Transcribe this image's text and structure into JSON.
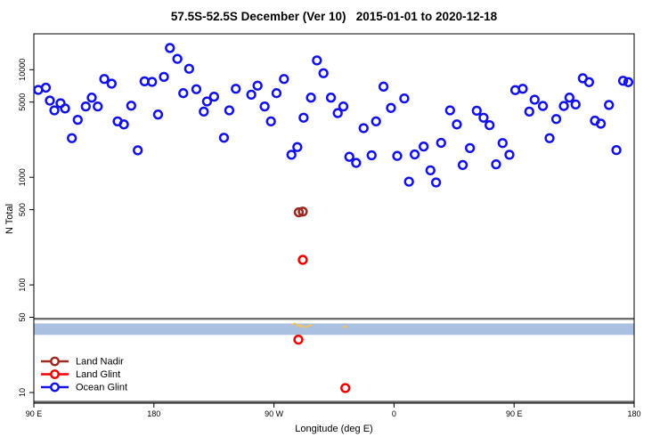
{
  "title": "57.5S-52.5S December (Ver 10)   2015-01-01 to 2020-12-18",
  "chart_data": {
    "type": "scatter",
    "title": "57.5S-52.5S December (Ver 10)   2015-01-01 to 2020-12-18",
    "xlabel": "Longitude (deg E)",
    "ylabel": "N Total",
    "x_axis": {
      "range": [
        90,
        540
      ],
      "ticks": [
        {
          "value": 90,
          "label": "90 E"
        },
        {
          "value": 180,
          "label": "180"
        },
        {
          "value": 270,
          "label": "90 W"
        },
        {
          "value": 360,
          "label": "0"
        },
        {
          "value": 450,
          "label": "90 E"
        },
        {
          "value": 540,
          "label": "180"
        }
      ]
    },
    "y_axis": {
      "scale": "log",
      "range": [
        7.96,
        21544
      ],
      "ticks": [
        {
          "value": 10000,
          "label": "10000"
        },
        {
          "value": 5000,
          "label": "5000"
        },
        {
          "value": 1000,
          "label": "1000"
        },
        {
          "value": 500,
          "label": "500"
        },
        {
          "value": 100,
          "label": "100"
        },
        {
          "value": 50,
          "label": "50"
        },
        {
          "value": 10,
          "label": "10"
        }
      ]
    },
    "legend_position": "bottom-left",
    "grid": false,
    "band": {
      "from": 34.3,
      "to": 43.8,
      "color": "#aac0e0"
    },
    "reference_line": {
      "value": 48.4,
      "color": "#6f6f6f"
    },
    "flagged_marks": {
      "color": "#f0c45e",
      "points": [
        [
          285.0,
          43.4
        ],
        [
          288.0,
          42.1
        ],
        [
          290.7,
          41.3
        ],
        [
          294.0,
          40.6
        ],
        [
          297.0,
          41.9
        ],
        [
          323.2,
          40.9
        ]
      ]
    },
    "series": [
      {
        "name": "Land Nadir",
        "color": "#9b2a22",
        "points": [
          [
            288.6,
            473
          ],
          [
            291.6,
            480
          ]
        ]
      },
      {
        "name": "Land Glint",
        "color": "#ee0000",
        "points": [
          [
            291.6,
            171
          ],
          [
            288.3,
            31
          ],
          [
            323.5,
            11
          ]
        ]
      },
      {
        "name": "Ocean Glint",
        "color": "#1212e8",
        "points": [
          [
            93.3,
            6490
          ],
          [
            99,
            6800
          ],
          [
            102,
            5160
          ],
          [
            105.4,
            4190
          ],
          [
            110,
            4880
          ],
          [
            113.4,
            4360
          ],
          [
            118.5,
            2310
          ],
          [
            122.9,
            3420
          ],
          [
            128.9,
            4550
          ],
          [
            133.4,
            5500
          ],
          [
            137.9,
            4550
          ],
          [
            142.8,
            8200
          ],
          [
            148.3,
            7410
          ],
          [
            152.8,
            3310
          ],
          [
            157.5,
            3100
          ],
          [
            163,
            4630
          ],
          [
            167.9,
            1780
          ],
          [
            173,
            7800
          ],
          [
            178.6,
            7700
          ],
          [
            183.1,
            3830
          ],
          [
            187.5,
            8580
          ],
          [
            192,
            15900
          ],
          [
            197.6,
            12600
          ],
          [
            202,
            6050
          ],
          [
            206.4,
            10200
          ],
          [
            211.8,
            6580
          ],
          [
            217.4,
            4080
          ],
          [
            219.8,
            5070
          ],
          [
            225.1,
            5610
          ],
          [
            232.5,
            2330
          ],
          [
            236.5,
            4190
          ],
          [
            241.4,
            6650
          ],
          [
            253,
            5860
          ],
          [
            257.7,
            7100
          ],
          [
            263,
            4550
          ],
          [
            267.7,
            3310
          ],
          [
            271.9,
            6050
          ],
          [
            277.5,
            8200
          ],
          [
            283.1,
            1620
          ],
          [
            287.5,
            1910
          ],
          [
            292.2,
            3580
          ],
          [
            297.7,
            5500
          ],
          [
            302.2,
            12200
          ],
          [
            307.1,
            9270
          ],
          [
            312.7,
            5500
          ],
          [
            317.8,
            3950
          ],
          [
            322,
            4550
          ],
          [
            326.5,
            1550
          ],
          [
            331.6,
            1360
          ],
          [
            337.2,
            2860
          ],
          [
            343.2,
            1600
          ],
          [
            346.5,
            3310
          ],
          [
            352.1,
            6960
          ],
          [
            357.7,
            4410
          ],
          [
            362.4,
            1580
          ],
          [
            367.7,
            5400
          ],
          [
            371.2,
            910
          ],
          [
            375.5,
            1630
          ],
          [
            382.2,
            1930
          ],
          [
            387.3,
            1160
          ],
          [
            391.5,
            895
          ],
          [
            395.3,
            2090
          ],
          [
            402,
            4190
          ],
          [
            407.1,
            3100
          ],
          [
            411.5,
            1300
          ],
          [
            416.9,
            1870
          ],
          [
            422,
            4160
          ],
          [
            427.1,
            3580
          ],
          [
            431.6,
            3050
          ],
          [
            436.5,
            1320
          ],
          [
            441.4,
            2080
          ],
          [
            446.5,
            1620
          ],
          [
            450.9,
            6460
          ],
          [
            456.5,
            6650
          ],
          [
            461.4,
            4080
          ],
          [
            465.4,
            5260
          ],
          [
            471.6,
            4600
          ],
          [
            476.6,
            2310
          ],
          [
            481.6,
            3480
          ],
          [
            487.3,
            4600
          ],
          [
            491.5,
            5500
          ],
          [
            496.1,
            4750
          ],
          [
            501.5,
            8320
          ],
          [
            506.2,
            7660
          ],
          [
            510.6,
            3360
          ],
          [
            515,
            3150
          ],
          [
            521.1,
            4700
          ],
          [
            526.7,
            1790
          ],
          [
            531.7,
            7890
          ],
          [
            535.6,
            7660
          ]
        ]
      }
    ]
  }
}
